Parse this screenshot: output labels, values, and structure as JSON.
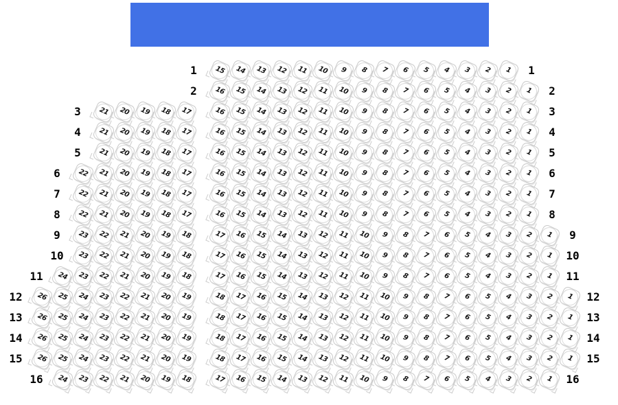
{
  "stage": {
    "color": "#4171e6"
  },
  "rows": [
    {
      "row": "1",
      "left": [],
      "right": [
        "15",
        "14",
        "13",
        "12",
        "11",
        "10",
        "9",
        "8",
        "7",
        "6",
        "5",
        "4",
        "3",
        "2",
        "1"
      ]
    },
    {
      "row": "2",
      "left": [],
      "right": [
        "16",
        "15",
        "14",
        "13",
        "12",
        "11",
        "10",
        "9",
        "8",
        "7",
        "6",
        "5",
        "4",
        "3",
        "2",
        "1"
      ]
    },
    {
      "row": "3",
      "left": [
        "21",
        "20",
        "19",
        "18",
        "17"
      ],
      "right": [
        "16",
        "15",
        "14",
        "13",
        "12",
        "11",
        "10",
        "9",
        "8",
        "7",
        "6",
        "5",
        "4",
        "3",
        "2",
        "1"
      ]
    },
    {
      "row": "4",
      "left": [
        "21",
        "20",
        "19",
        "18",
        "17"
      ],
      "right": [
        "16",
        "15",
        "14",
        "13",
        "12",
        "11",
        "10",
        "9",
        "8",
        "7",
        "6",
        "5",
        "4",
        "3",
        "2",
        "1"
      ]
    },
    {
      "row": "5",
      "left": [
        "21",
        "20",
        "19",
        "18",
        "17"
      ],
      "right": [
        "16",
        "15",
        "14",
        "13",
        "12",
        "11",
        "10",
        "9",
        "8",
        "7",
        "6",
        "5",
        "4",
        "3",
        "2",
        "1"
      ]
    },
    {
      "row": "6",
      "left": [
        "22",
        "21",
        "20",
        "19",
        "18",
        "17"
      ],
      "right": [
        "16",
        "15",
        "14",
        "13",
        "12",
        "11",
        "10",
        "9",
        "8",
        "7",
        "6",
        "5",
        "4",
        "3",
        "2",
        "1"
      ]
    },
    {
      "row": "7",
      "left": [
        "22",
        "21",
        "20",
        "19",
        "18",
        "17"
      ],
      "right": [
        "16",
        "15",
        "14",
        "13",
        "12",
        "11",
        "10",
        "9",
        "8",
        "7",
        "6",
        "5",
        "4",
        "3",
        "2",
        "1"
      ]
    },
    {
      "row": "8",
      "left": [
        "22",
        "21",
        "20",
        "19",
        "18",
        "17"
      ],
      "right": [
        "16",
        "15",
        "14",
        "13",
        "12",
        "11",
        "10",
        "9",
        "8",
        "7",
        "6",
        "5",
        "4",
        "3",
        "2",
        "1"
      ]
    },
    {
      "row": "9",
      "left": [
        "23",
        "22",
        "21",
        "20",
        "19",
        "18"
      ],
      "right": [
        "17",
        "16",
        "15",
        "14",
        "13",
        "12",
        "11",
        "10",
        "9",
        "8",
        "7",
        "6",
        "5",
        "4",
        "3",
        "2",
        "1"
      ]
    },
    {
      "row": "10",
      "left": [
        "23",
        "22",
        "21",
        "20",
        "19",
        "18"
      ],
      "right": [
        "17",
        "16",
        "15",
        "14",
        "13",
        "12",
        "11",
        "10",
        "9",
        "8",
        "7",
        "6",
        "5",
        "4",
        "3",
        "2",
        "1"
      ]
    },
    {
      "row": "11",
      "left": [
        "24",
        "23",
        "22",
        "21",
        "20",
        "19",
        "18"
      ],
      "right": [
        "17",
        "16",
        "15",
        "14",
        "13",
        "12",
        "11",
        "10",
        "9",
        "8",
        "7",
        "6",
        "5",
        "4",
        "3",
        "2",
        "1"
      ]
    },
    {
      "row": "12",
      "left": [
        "26",
        "25",
        "24",
        "23",
        "22",
        "21",
        "20",
        "19"
      ],
      "right": [
        "18",
        "17",
        "16",
        "15",
        "14",
        "13",
        "12",
        "11",
        "10",
        "9",
        "8",
        "7",
        "6",
        "5",
        "4",
        "3",
        "2",
        "1"
      ]
    },
    {
      "row": "13",
      "left": [
        "26",
        "25",
        "24",
        "23",
        "22",
        "21",
        "20",
        "19"
      ],
      "right": [
        "18",
        "17",
        "16",
        "15",
        "14",
        "13",
        "12",
        "11",
        "10",
        "9",
        "8",
        "7",
        "6",
        "5",
        "4",
        "3",
        "2",
        "1"
      ]
    },
    {
      "row": "14",
      "left": [
        "26",
        "25",
        "24",
        "23",
        "22",
        "21",
        "20",
        "19"
      ],
      "right": [
        "18",
        "17",
        "16",
        "15",
        "14",
        "13",
        "12",
        "11",
        "10",
        "9",
        "8",
        "7",
        "6",
        "5",
        "4",
        "3",
        "2",
        "1"
      ]
    },
    {
      "row": "15",
      "left": [
        "26",
        "25",
        "24",
        "23",
        "22",
        "21",
        "20",
        "19"
      ],
      "right": [
        "18",
        "17",
        "16",
        "15",
        "14",
        "13",
        "12",
        "11",
        "10",
        "9",
        "8",
        "7",
        "6",
        "5",
        "4",
        "3",
        "2",
        "1"
      ]
    },
    {
      "row": "16",
      "left": [
        "24",
        "23",
        "22",
        "21",
        "20",
        "19",
        "18"
      ],
      "right": [
        "17",
        "16",
        "15",
        "14",
        "13",
        "12",
        "11",
        "10",
        "9",
        "8",
        "7",
        "6",
        "5",
        "4",
        "3",
        "2",
        "1"
      ]
    }
  ]
}
